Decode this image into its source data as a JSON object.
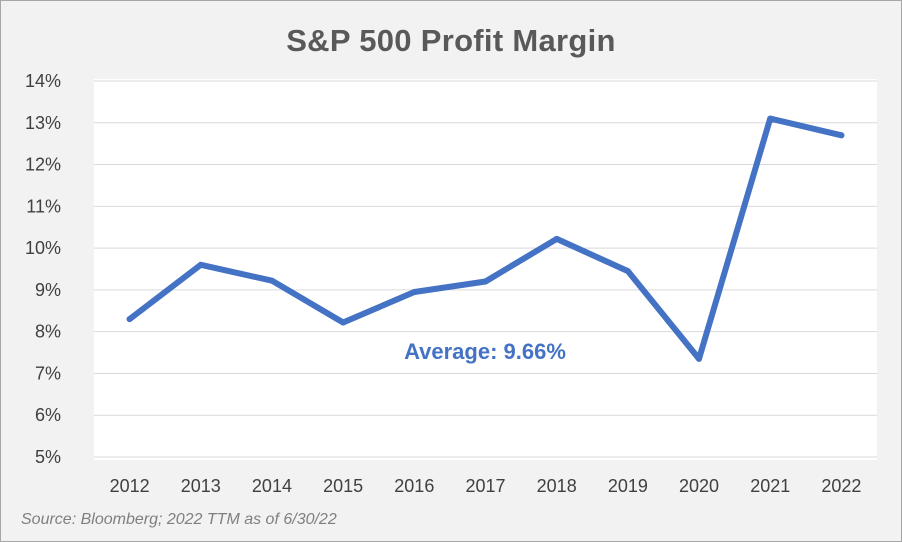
{
  "chart_data": {
    "type": "line",
    "title": "S&P 500 Profit Margin",
    "categories": [
      "2012",
      "2013",
      "2014",
      "2015",
      "2016",
      "2017",
      "2018",
      "2019",
      "2020",
      "2021",
      "2022"
    ],
    "series": [
      {
        "values": [
          8.3,
          9.6,
          9.22,
          8.22,
          8.95,
          9.2,
          10.22,
          9.45,
          7.35,
          13.1,
          12.7
        ]
      }
    ],
    "ylim": [
      5,
      14
    ],
    "yticks": [
      5,
      6,
      7,
      8,
      9,
      10,
      11,
      12,
      13,
      14
    ],
    "ytick_labels": [
      "5%",
      "6%",
      "7%",
      "8%",
      "9%",
      "10%",
      "11%",
      "12%",
      "13%",
      "14%"
    ],
    "xlabel": "",
    "ylabel": "",
    "grid": true,
    "legend": "none",
    "annotation": "Average: 9.66%",
    "source": "Source: Bloomberg; 2022 TTM as of 6/30/22",
    "colors": {
      "line": "#4472c4",
      "annotation": "#4472c4",
      "grid": "#d9d9d9",
      "axis_text": "#404040",
      "title": "#595959",
      "background": "#f2f2f2",
      "plot_background": "#ffffff"
    }
  }
}
